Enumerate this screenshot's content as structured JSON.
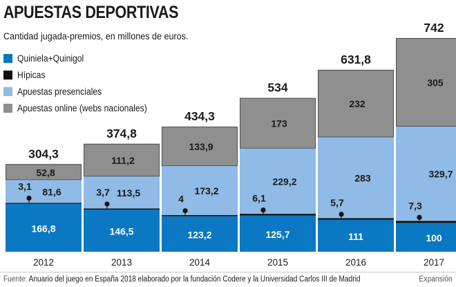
{
  "chart_data": {
    "type": "bar",
    "stacked": true,
    "title": "APUESTAS DEPORTIVAS",
    "subtitle": "Cantidad jugada-premios, en millones de euros.",
    "categories": [
      "2012",
      "2013",
      "2014",
      "2015",
      "2016",
      "2017"
    ],
    "series": [
      {
        "name": "Quiniela+Quinigol",
        "color": "#0a78c2",
        "values": [
          166.8,
          146.5,
          123.2,
          125.7,
          111,
          100
        ],
        "labels": [
          "166,8",
          "146,5",
          "123,2",
          "125,7",
          "111",
          "100"
        ]
      },
      {
        "name": "Hípicas",
        "color": "#111111",
        "values": [
          3.1,
          3.7,
          4,
          6.1,
          5.7,
          7.3
        ],
        "labels": [
          "3,1",
          "3,7",
          "4",
          "6,1",
          "5,7",
          "7,3"
        ]
      },
      {
        "name": "Apuestas presenciales",
        "color": "#8fbbe6",
        "values": [
          81.6,
          113.5,
          173.2,
          229.2,
          283,
          329.7
        ],
        "labels": [
          "81,6",
          "113,5",
          "173,2",
          "229,2",
          "283",
          "329,7"
        ]
      },
      {
        "name": "Apuestas online (webs nacionales)",
        "color": "#8f8f8f",
        "values": [
          52.8,
          111.2,
          133.9,
          173,
          232,
          305
        ],
        "labels": [
          "52,8",
          "111,2",
          "133,9",
          "173",
          "232",
          "305"
        ]
      }
    ],
    "totals": [
      304.3,
      374.8,
      434.3,
      534,
      631.8,
      742
    ],
    "total_labels": [
      "304,3",
      "374,8",
      "434,3",
      "534",
      "631,8",
      "742"
    ],
    "ylim": [
      0,
      742
    ],
    "xlabel": "",
    "ylabel": "",
    "legend_position": "top-left"
  },
  "source": {
    "label": "Fuente:",
    "text": "Anuario del juego en España 2018 elaborado por la fundación Codere y la Universidad Carlos III de Madrid"
  },
  "credit": "Expansión"
}
